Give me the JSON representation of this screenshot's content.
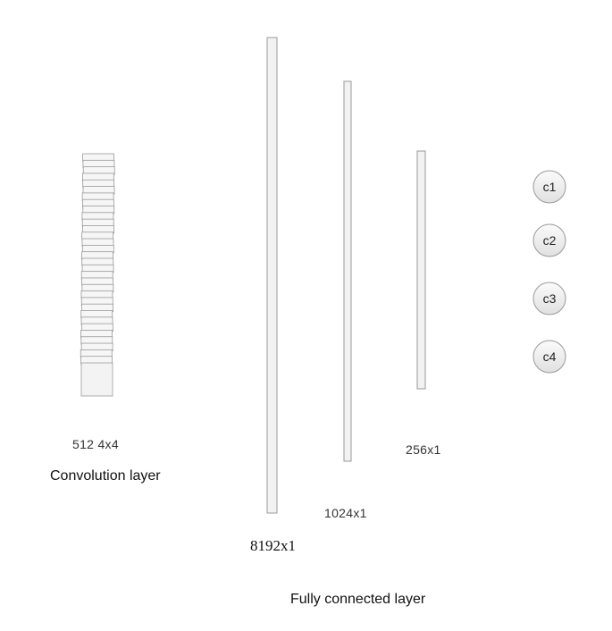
{
  "conv": {
    "dims": "512  4x4",
    "title": "Convolution layer"
  },
  "fc": {
    "title": "Fully connected layer",
    "layers": [
      {
        "name": "fc-8192",
        "label": "8192x1"
      },
      {
        "name": "fc-1024",
        "label": "1024x1"
      },
      {
        "name": "fc-256",
        "label": "256x1"
      }
    ]
  },
  "outputs": [
    "c1",
    "c2",
    "c3",
    "c4"
  ],
  "colors": {
    "stroke": "#9a9a9a",
    "bar_fill": "#f2f2f2",
    "circle_fill_top": "#fbfbfb",
    "circle_fill_bottom": "#e2e2e2"
  }
}
